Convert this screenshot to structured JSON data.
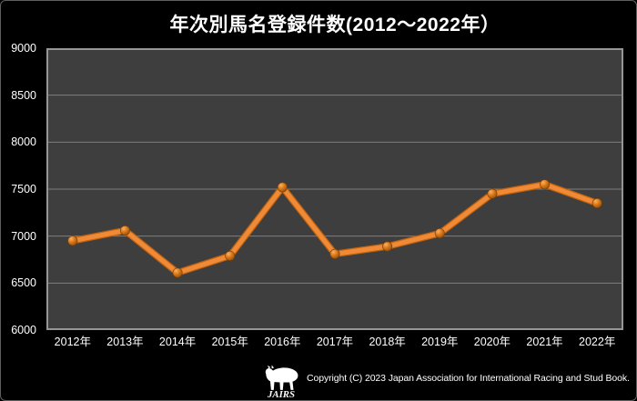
{
  "header": {
    "title": "年次別馬名登録件数(2012～2022年）"
  },
  "footer": {
    "logo": "JAIRS",
    "copyright": "Copyright (C) 2023  Japan Association for International Racing and Stud Book."
  },
  "colors": {
    "background": "#000000",
    "plot_background": "#3E3E3E",
    "gridline": "#7E7E7E",
    "plot_border": "#969696",
    "line": "#F08A36",
    "line_edge": "#C06410",
    "marker_stroke": "#7A3D05",
    "text": "#FFFFFF"
  },
  "chart_data": {
    "type": "line",
    "title": "年次別馬名登録件数(2012～2022年）",
    "categories": [
      "2012年",
      "2013年",
      "2014年",
      "2015年",
      "2016年",
      "2017年",
      "2018年",
      "2019年",
      "2020年",
      "2021年",
      "2022年"
    ],
    "values": [
      6950,
      7060,
      6610,
      6790,
      7520,
      6810,
      6890,
      7030,
      7450,
      7550,
      7350
    ],
    "xlabel": "",
    "ylabel": "",
    "ylim": [
      6000,
      9000
    ],
    "yticks": [
      6000,
      6500,
      7000,
      7500,
      8000,
      8500,
      9000
    ],
    "grid": true,
    "legend_position": "none"
  }
}
